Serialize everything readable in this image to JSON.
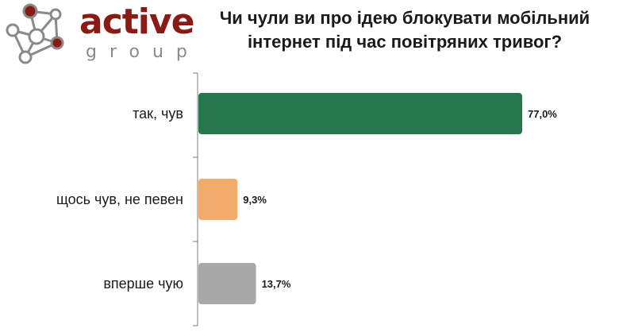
{
  "logo": {
    "word": "active",
    "sub": "group",
    "icon": "molecule-network-icon",
    "colors": {
      "brand_red": "#8a1a14",
      "node_gray": "#8a8a8a"
    }
  },
  "chart_data": {
    "type": "bar",
    "orientation": "horizontal",
    "title": "Чи чули ви про ідею блокувати мобільний інтернет під час повітряних тривог?",
    "categories": [
      "так, чув",
      "щось чув, не певен",
      "вперше чую"
    ],
    "values": [
      77.0,
      9.3,
      13.7
    ],
    "value_labels": [
      "77,0%",
      "9,3%",
      "13,7%"
    ],
    "colors": [
      "#27774d",
      "#f2ac6c",
      "#a8a8a8"
    ],
    "xlim": [
      0,
      100
    ],
    "grid": false,
    "legend": "none"
  }
}
